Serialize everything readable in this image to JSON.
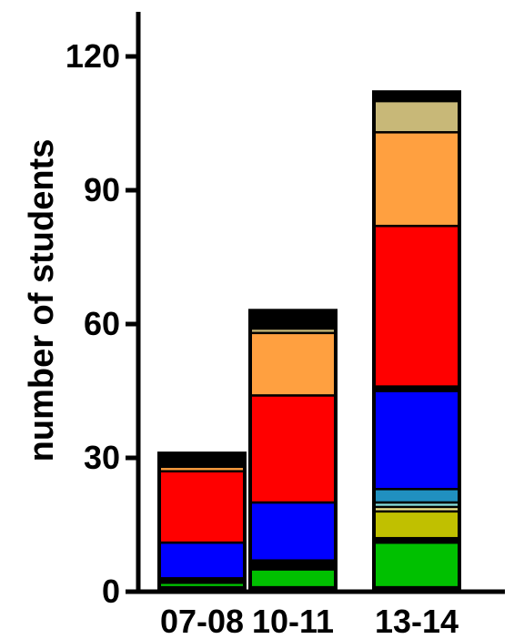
{
  "chart_data": {
    "type": "bar",
    "stacked": true,
    "title": "",
    "xlabel": "",
    "ylabel": "number of students",
    "ylim": [
      0,
      130
    ],
    "yticks": [
      0,
      30,
      60,
      90,
      120
    ],
    "ytick_labels": [
      "0",
      "30",
      "60",
      "90",
      "120"
    ],
    "categories": [
      "07-08",
      "10-11",
      "13-14"
    ],
    "grid": false,
    "legend": "none",
    "series": [
      {
        "color": "#000000",
        "values": [
          1,
          1,
          1
        ]
      },
      {
        "color": "#00c000",
        "values": [
          1,
          4,
          10
        ]
      },
      {
        "color": "#000000",
        "values": [
          0.5,
          1,
          1
        ]
      },
      {
        "color": "#c0c000",
        "values": [
          0,
          0,
          6
        ]
      },
      {
        "color": "#f0e68c",
        "values": [
          0,
          0,
          1
        ]
      },
      {
        "color": "#88e0e0",
        "values": [
          0,
          0,
          1
        ]
      },
      {
        "color": "#2090c0",
        "values": [
          0,
          0,
          3
        ]
      },
      {
        "color": "#000000",
        "values": [
          0.5,
          1,
          0
        ]
      },
      {
        "color": "#0000ff",
        "values": [
          8,
          13,
          22
        ]
      },
      {
        "color": "#000000",
        "values": [
          0,
          0,
          1
        ]
      },
      {
        "color": "#ff0000",
        "values": [
          16,
          24,
          36
        ]
      },
      {
        "color": "#000000",
        "values": [
          0,
          0,
          0
        ]
      },
      {
        "color": "#ffa040",
        "values": [
          1,
          14,
          21
        ]
      },
      {
        "color": "#000000",
        "values": [
          0.5,
          0,
          0
        ]
      },
      {
        "color": "#c8b878",
        "values": [
          0.5,
          1,
          7
        ]
      },
      {
        "color": "#000000",
        "values": [
          2,
          4,
          2
        ]
      }
    ]
  }
}
